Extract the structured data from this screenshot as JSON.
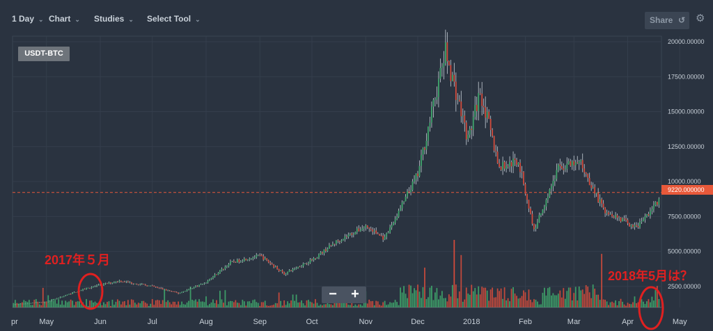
{
  "toolbar": {
    "interval": "1 Day",
    "chart": "Chart",
    "studies": "Studies",
    "select_tool": "Select Tool",
    "share": "Share"
  },
  "symbol": "USDT-BTC",
  "current_price": "9220.000000",
  "zoom": {
    "minus": "−",
    "plus": "+"
  },
  "annotations": {
    "top_left": "2017年５月",
    "bottom_right": "2018年5月は？"
  },
  "colors": {
    "background": "#2a3340",
    "up": "#3fa66c",
    "down": "#d24b3c",
    "wick": "#c8d0d8",
    "price_line": "#e8593a",
    "annotation": "#e02020"
  },
  "chart_data": {
    "type": "candlestick",
    "title": "",
    "ylabel": "",
    "ylim": [
      0,
      20000
    ],
    "y_ticks": [
      "2500.00000",
      "5000.00000",
      "7500.00000",
      "10000.0000",
      "12500.00000",
      "15000.00000",
      "17500.00000",
      "20000.00000"
    ],
    "x_ticks": [
      "pr",
      "May",
      "Jun",
      "Jul",
      "Aug",
      "Sep",
      "Oct",
      "Nov",
      "Dec",
      "2018",
      "Feb",
      "Mar",
      "Apr",
      "May"
    ],
    "price_anchors": [
      {
        "date": "2017-04-01",
        "price": 1050
      },
      {
        "date": "2017-05-01",
        "price": 1400
      },
      {
        "date": "2017-05-25",
        "price": 2400
      },
      {
        "date": "2017-06-12",
        "price": 2900
      },
      {
        "date": "2017-07-01",
        "price": 2500
      },
      {
        "date": "2017-07-16",
        "price": 2000
      },
      {
        "date": "2017-08-01",
        "price": 2800
      },
      {
        "date": "2017-08-15",
        "price": 4200
      },
      {
        "date": "2017-09-01",
        "price": 4700
      },
      {
        "date": "2017-09-15",
        "price": 3400
      },
      {
        "date": "2017-10-01",
        "price": 4400
      },
      {
        "date": "2017-10-15",
        "price": 5700
      },
      {
        "date": "2017-11-01",
        "price": 6800
      },
      {
        "date": "2017-11-12",
        "price": 5900
      },
      {
        "date": "2017-12-01",
        "price": 10500
      },
      {
        "date": "2017-12-17",
        "price": 19300
      },
      {
        "date": "2017-12-30",
        "price": 13000
      },
      {
        "date": "2018-01-06",
        "price": 16500
      },
      {
        "date": "2018-01-17",
        "price": 11000
      },
      {
        "date": "2018-01-28",
        "price": 11500
      },
      {
        "date": "2018-02-06",
        "price": 6500
      },
      {
        "date": "2018-02-20",
        "price": 11000
      },
      {
        "date": "2018-03-05",
        "price": 11300
      },
      {
        "date": "2018-03-18",
        "price": 8000
      },
      {
        "date": "2018-04-06",
        "price": 6700
      },
      {
        "date": "2018-04-24",
        "price": 9400
      },
      {
        "date": "2018-05-01",
        "price": 9220
      }
    ],
    "current_price": 9220
  }
}
